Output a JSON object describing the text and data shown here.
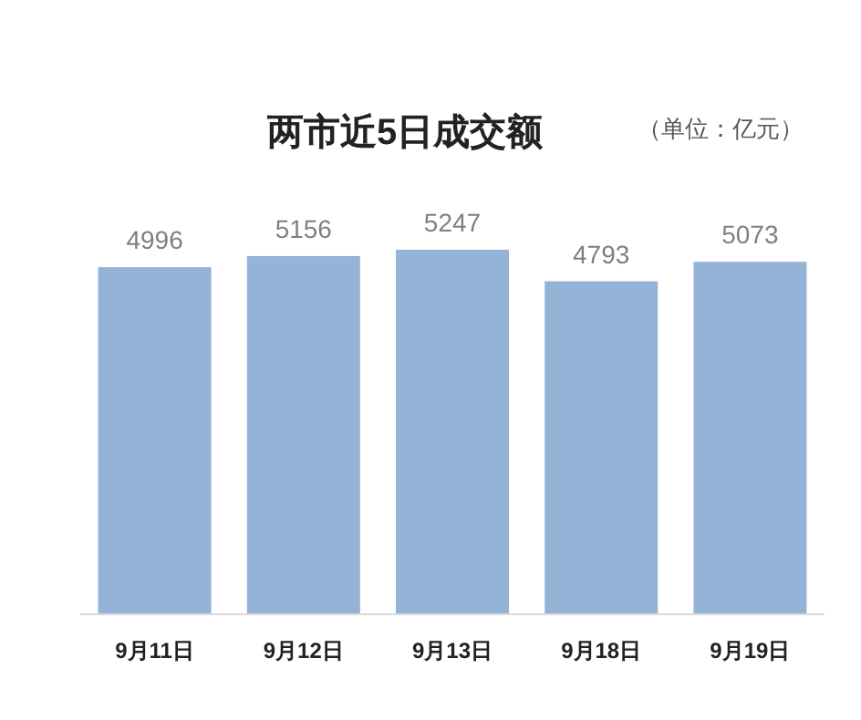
{
  "chart_data": {
    "type": "bar",
    "title": "两市近5日成交额",
    "annotations": [
      "（单位：亿元）"
    ],
    "categories": [
      "9月11日",
      "9月12日",
      "9月13日",
      "9月18日",
      "9月19日"
    ],
    "values": [
      4996,
      5156,
      5247,
      4793,
      5073
    ],
    "color": "#95b3d7",
    "data_labels": true
  }
}
